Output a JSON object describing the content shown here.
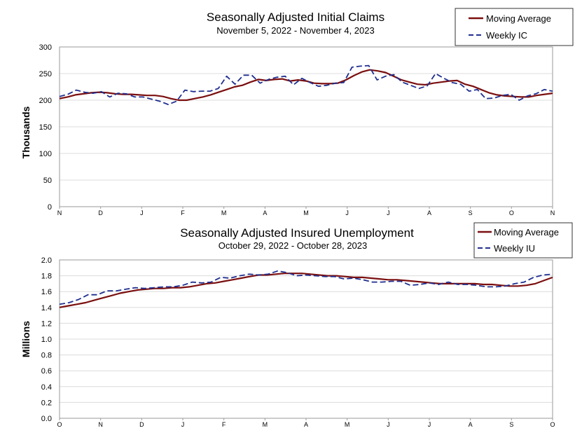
{
  "chart_data": [
    {
      "type": "line",
      "title": "Seasonally Adjusted Initial Claims",
      "subtitle": "November 5, 2022 - November 4, 2023",
      "ylabel": "Thousands",
      "xlabel": "",
      "ylim": [
        0,
        300
      ],
      "yticks": [
        "0",
        "50",
        "100",
        "150",
        "200",
        "250",
        "300"
      ],
      "month_labels": [
        "N",
        "D",
        "J",
        "F",
        "M",
        "A",
        "M",
        "J",
        "J",
        "A",
        "S",
        "O",
        "N"
      ],
      "legend_position": "top-right",
      "series": [
        {
          "name": "Moving Average",
          "style": "solid",
          "color": "#7b0f0f",
          "values": [
            203,
            206,
            210,
            212,
            214,
            215,
            214,
            212,
            211,
            211,
            210,
            209,
            209,
            207,
            203,
            200,
            200,
            203,
            206,
            210,
            215,
            220,
            225,
            228,
            234,
            239,
            237,
            239,
            240,
            236,
            238,
            236,
            232,
            231,
            231,
            232,
            238,
            246,
            253,
            257,
            255,
            252,
            245,
            238,
            234,
            230,
            229,
            232,
            234,
            236,
            237,
            230,
            226,
            220,
            214,
            210,
            208,
            207,
            206,
            206,
            209,
            211,
            213
          ]
        },
        {
          "name": "Weekly IC",
          "style": "dashed",
          "color": "#1f2f8f",
          "values": [
            207,
            211,
            219,
            215,
            213,
            216,
            206,
            213,
            212,
            206,
            206,
            202,
            198,
            192,
            198,
            219,
            216,
            217,
            217,
            222,
            245,
            230,
            247,
            247,
            232,
            239,
            243,
            245,
            229,
            241,
            233,
            226,
            228,
            232,
            233,
            262,
            264,
            265,
            238,
            245,
            248,
            234,
            228,
            222,
            227,
            250,
            241,
            233,
            230,
            217,
            220,
            203,
            204,
            209,
            211,
            200,
            208,
            212,
            220,
            217
          ]
        }
      ]
    },
    {
      "type": "line",
      "title": "Seasonally Adjusted Insured Unemployment",
      "subtitle": "October 29, 2022 - October 28, 2023",
      "ylabel": "Millions",
      "xlabel": "",
      "ylim": [
        0.0,
        2.0
      ],
      "yticks": [
        "0.0",
        "0.2",
        "0.4",
        "0.6",
        "0.8",
        "1.0",
        "1.2",
        "1.4",
        "1.6",
        "1.8",
        "2.0"
      ],
      "month_labels": [
        "O",
        "N",
        "D",
        "J",
        "F",
        "M",
        "A",
        "M",
        "J",
        "J",
        "A",
        "S",
        "O"
      ],
      "legend_position": "top-right",
      "series": [
        {
          "name": "Moving Average",
          "style": "solid",
          "color": "#7b0f0f",
          "values": [
            1.4,
            1.42,
            1.44,
            1.46,
            1.49,
            1.52,
            1.55,
            1.58,
            1.6,
            1.62,
            1.63,
            1.64,
            1.64,
            1.65,
            1.65,
            1.66,
            1.68,
            1.7,
            1.71,
            1.73,
            1.75,
            1.77,
            1.79,
            1.81,
            1.81,
            1.82,
            1.83,
            1.83,
            1.83,
            1.82,
            1.81,
            1.8,
            1.8,
            1.79,
            1.78,
            1.78,
            1.77,
            1.76,
            1.75,
            1.75,
            1.74,
            1.73,
            1.72,
            1.71,
            1.7,
            1.7,
            1.7,
            1.7,
            1.7,
            1.69,
            1.69,
            1.68,
            1.67,
            1.67,
            1.68,
            1.7,
            1.74,
            1.78
          ]
        },
        {
          "name": "Weekly IU",
          "style": "dashed",
          "color": "#1f2f8f",
          "values": [
            1.44,
            1.46,
            1.5,
            1.56,
            1.56,
            1.61,
            1.61,
            1.63,
            1.65,
            1.64,
            1.65,
            1.66,
            1.66,
            1.68,
            1.72,
            1.71,
            1.72,
            1.78,
            1.77,
            1.8,
            1.82,
            1.81,
            1.82,
            1.86,
            1.84,
            1.8,
            1.81,
            1.8,
            1.79,
            1.79,
            1.76,
            1.77,
            1.75,
            1.72,
            1.72,
            1.73,
            1.73,
            1.68,
            1.69,
            1.71,
            1.69,
            1.72,
            1.69,
            1.69,
            1.68,
            1.66,
            1.66,
            1.67,
            1.7,
            1.72,
            1.78,
            1.81,
            1.82
          ]
        }
      ]
    }
  ]
}
